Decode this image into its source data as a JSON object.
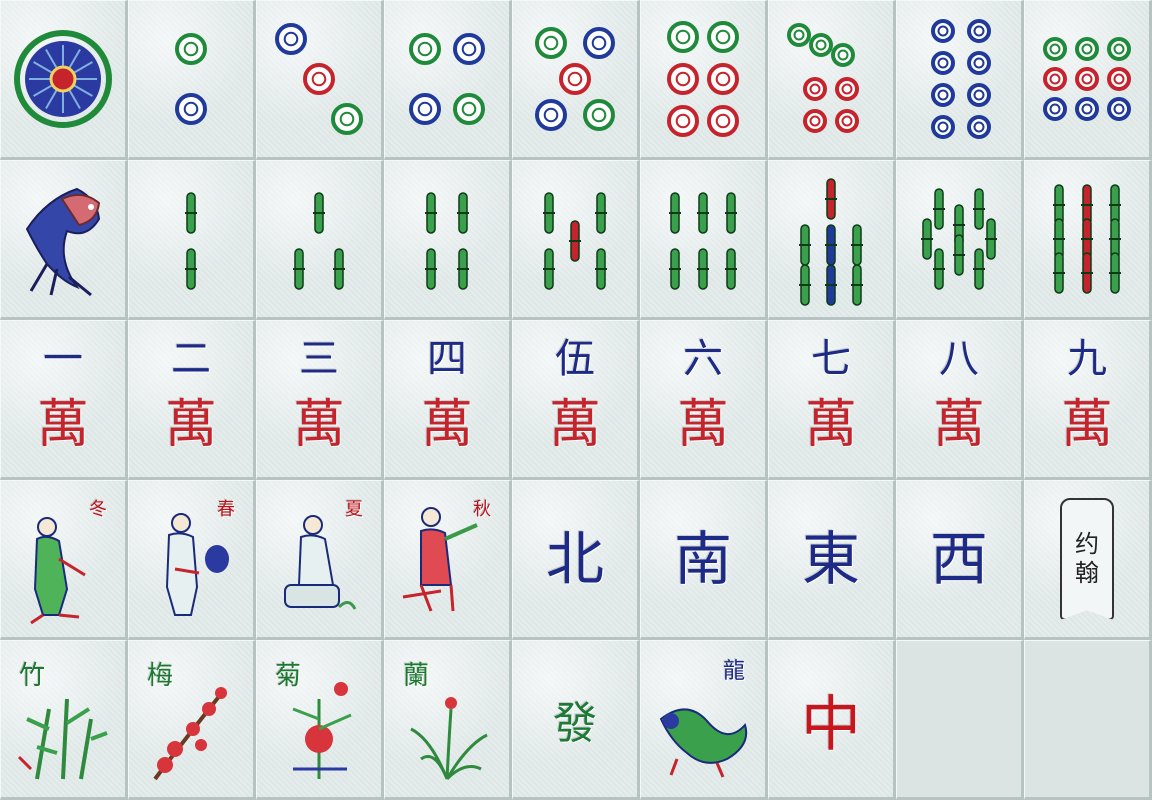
{
  "board": {
    "circles_row": [
      {
        "name": "one-circles-tile"
      },
      {
        "name": "two-circles-tile"
      },
      {
        "name": "three-circles-tile"
      },
      {
        "name": "four-circles-tile"
      },
      {
        "name": "five-circles-tile"
      },
      {
        "name": "six-circles-tile"
      },
      {
        "name": "seven-circles-tile"
      },
      {
        "name": "eight-circles-tile"
      },
      {
        "name": "nine-circles-tile"
      }
    ],
    "bamboo_row": [
      {
        "name": "one-bamboo-tile"
      },
      {
        "name": "two-bamboo-tile"
      },
      {
        "name": "three-bamboo-tile"
      },
      {
        "name": "four-bamboo-tile"
      },
      {
        "name": "five-bamboo-tile"
      },
      {
        "name": "six-bamboo-tile"
      },
      {
        "name": "seven-bamboo-tile"
      },
      {
        "name": "eight-bamboo-tile"
      },
      {
        "name": "nine-bamboo-tile"
      }
    ],
    "character_row": {
      "wan": "萬",
      "numbers": [
        "一",
        "二",
        "三",
        "四",
        "伍",
        "六",
        "七",
        "八",
        "九"
      ]
    },
    "seasons": [
      "冬",
      "春",
      "夏",
      "秋"
    ],
    "winds": [
      "北",
      "南",
      "東",
      "西"
    ],
    "joker": {
      "line1": "约",
      "line2": "翰"
    },
    "flowers": [
      "竹",
      "梅",
      "菊",
      "蘭"
    ],
    "green_dragon": "發",
    "dragon_label": "龍",
    "red_dragon": "中"
  },
  "colors": {
    "tile_face": "#e3ebeb",
    "circle_blue": "#1f3a9a",
    "circle_green": "#1f8a3a",
    "circle_red": "#c5242c",
    "character_blue": "#1d2a86",
    "character_red": "#c5242c"
  }
}
